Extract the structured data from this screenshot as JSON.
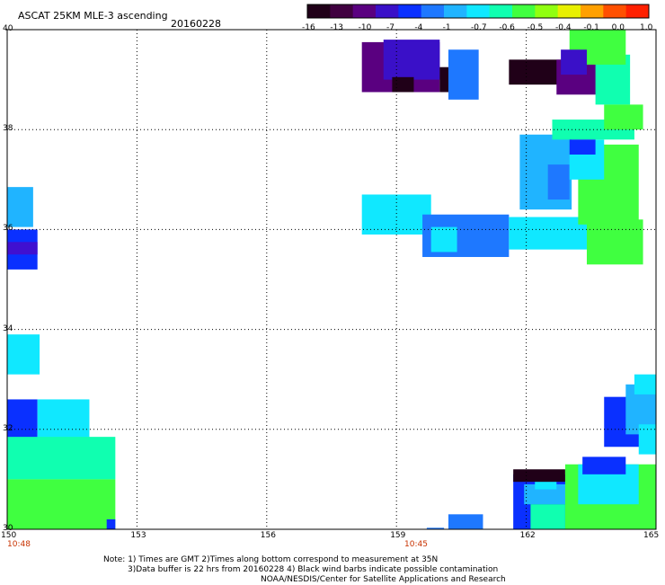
{
  "header": {
    "title": "ASCAT 25KM MLE-3 ascending",
    "date": "20160228"
  },
  "colorbar": {
    "labels": [
      "-16",
      "-13",
      "-10",
      "-7",
      "-4",
      "-1",
      "-0.7",
      "-0.6",
      "-0.5",
      "-0.4",
      "-0.1",
      "0.0",
      "1.0"
    ],
    "colors": [
      "#200018",
      "#400040",
      "#5a0080",
      "#3a10c8",
      "#0a30ff",
      "#1e78ff",
      "#20b4ff",
      "#10e8ff",
      "#10ffb0",
      "#40ff40",
      "#90ff10",
      "#e8f000",
      "#ffa000",
      "#ff5000",
      "#ff2000"
    ]
  },
  "map": {
    "lat_labels": [
      "40",
      "38",
      "36",
      "34",
      "32",
      "30"
    ],
    "lon_labels": [
      "150",
      "153",
      "156",
      "159",
      "162",
      "165"
    ],
    "time_labels": [
      "10:48",
      "10:45"
    ],
    "grid": "dotted",
    "cells": [
      {
        "lon": 150.0,
        "lat": 35.2,
        "w": 0.7,
        "h": 0.8,
        "color": "#0a30ff"
      },
      {
        "lon": 150.0,
        "lat": 35.5,
        "w": 0.7,
        "h": 0.25,
        "color": "#4010d0"
      },
      {
        "lon": 150.0,
        "lat": 36.05,
        "w": 0.6,
        "h": 0.8,
        "color": "#20b4ff"
      },
      {
        "lon": 150.0,
        "lat": 33.1,
        "w": 0.75,
        "h": 0.8,
        "color": "#10e8ff"
      },
      {
        "lon": 150.0,
        "lat": 31.8,
        "w": 0.7,
        "h": 0.8,
        "color": "#0a30ff"
      },
      {
        "lon": 150.7,
        "lat": 31.8,
        "w": 1.2,
        "h": 0.8,
        "color": "#10e8ff"
      },
      {
        "lon": 150.0,
        "lat": 31.0,
        "w": 2.5,
        "h": 0.85,
        "color": "#10ffb0"
      },
      {
        "lon": 150.0,
        "lat": 30.0,
        "w": 2.5,
        "h": 1.0,
        "color": "#40ff40"
      },
      {
        "lon": 152.3,
        "lat": 30.0,
        "w": 0.2,
        "h": 0.2,
        "color": "#0a30ff"
      },
      {
        "lon": 158.2,
        "lat": 38.75,
        "w": 1.8,
        "h": 1.0,
        "color": "#5a0080"
      },
      {
        "lon": 158.7,
        "lat": 39.0,
        "w": 1.3,
        "h": 0.8,
        "color": "#3a10c8"
      },
      {
        "lon": 160.0,
        "lat": 38.75,
        "w": 0.4,
        "h": 0.5,
        "color": "#200018"
      },
      {
        "lon": 158.9,
        "lat": 38.75,
        "w": 0.5,
        "h": 0.3,
        "color": "#200018"
      },
      {
        "lon": 160.2,
        "lat": 38.6,
        "w": 0.7,
        "h": 1.0,
        "color": "#1e78ff"
      },
      {
        "lon": 158.2,
        "lat": 35.9,
        "w": 1.6,
        "h": 0.8,
        "color": "#10e8ff"
      },
      {
        "lon": 159.6,
        "lat": 35.45,
        "w": 2.0,
        "h": 0.85,
        "color": "#1e78ff"
      },
      {
        "lon": 159.8,
        "lat": 35.55,
        "w": 0.6,
        "h": 0.5,
        "color": "#10e8ff"
      },
      {
        "lon": 161.6,
        "lat": 35.6,
        "w": 1.8,
        "h": 0.65,
        "color": "#10e8ff"
      },
      {
        "lon": 163.4,
        "lat": 35.3,
        "w": 1.3,
        "h": 0.9,
        "color": "#40ff40"
      },
      {
        "lon": 161.85,
        "lat": 36.4,
        "w": 1.2,
        "h": 1.5,
        "color": "#20b4ff"
      },
      {
        "lon": 162.5,
        "lat": 36.6,
        "w": 0.5,
        "h": 0.7,
        "color": "#1e78ff"
      },
      {
        "lon": 163.2,
        "lat": 36.1,
        "w": 1.4,
        "h": 1.6,
        "color": "#40ff40"
      },
      {
        "lon": 163.0,
        "lat": 37.0,
        "w": 0.8,
        "h": 0.8,
        "color": "#10e8ff"
      },
      {
        "lon": 162.6,
        "lat": 37.8,
        "w": 1.9,
        "h": 0.4,
        "color": "#10ffb0"
      },
      {
        "lon": 163.0,
        "lat": 37.5,
        "w": 0.6,
        "h": 0.3,
        "color": "#0a30ff"
      },
      {
        "lon": 161.6,
        "lat": 38.9,
        "w": 1.2,
        "h": 0.5,
        "color": "#200018"
      },
      {
        "lon": 162.7,
        "lat": 38.7,
        "w": 1.2,
        "h": 0.7,
        "color": "#5a0080"
      },
      {
        "lon": 163.6,
        "lat": 38.5,
        "w": 0.8,
        "h": 1.0,
        "color": "#10ffb0"
      },
      {
        "lon": 163.8,
        "lat": 38.0,
        "w": 0.9,
        "h": 0.5,
        "color": "#40ff40"
      },
      {
        "lon": 163.0,
        "lat": 39.3,
        "w": 1.3,
        "h": 0.7,
        "color": "#40ff40"
      },
      {
        "lon": 162.8,
        "lat": 39.1,
        "w": 0.6,
        "h": 0.5,
        "color": "#3a10c8"
      },
      {
        "lon": 163.8,
        "lat": 31.65,
        "w": 1.0,
        "h": 1.0,
        "color": "#0a30ff"
      },
      {
        "lon": 164.3,
        "lat": 31.9,
        "w": 0.7,
        "h": 1.0,
        "color": "#20b4ff"
      },
      {
        "lon": 164.6,
        "lat": 31.5,
        "w": 0.4,
        "h": 0.6,
        "color": "#10e8ff"
      },
      {
        "lon": 164.5,
        "lat": 32.7,
        "w": 0.5,
        "h": 0.4,
        "color": "#10e8ff"
      },
      {
        "lon": 161.7,
        "lat": 30.0,
        "w": 1.3,
        "h": 1.1,
        "color": "#0a30ff"
      },
      {
        "lon": 161.95,
        "lat": 30.5,
        "w": 1.1,
        "h": 0.4,
        "color": "#20b4ff"
      },
      {
        "lon": 162.2,
        "lat": 30.8,
        "w": 0.5,
        "h": 0.35,
        "color": "#10e8ff"
      },
      {
        "lon": 161.7,
        "lat": 30.95,
        "w": 1.2,
        "h": 0.25,
        "color": "#200018"
      },
      {
        "lon": 162.1,
        "lat": 30.0,
        "w": 0.8,
        "h": 0.5,
        "color": "#10ffb0"
      },
      {
        "lon": 162.9,
        "lat": 30.0,
        "w": 2.1,
        "h": 1.3,
        "color": "#40ff40"
      },
      {
        "lon": 163.2,
        "lat": 30.5,
        "w": 1.4,
        "h": 0.8,
        "color": "#10e8ff"
      },
      {
        "lon": 163.3,
        "lat": 31.1,
        "w": 1.0,
        "h": 0.35,
        "color": "#0a30ff"
      },
      {
        "lon": 160.2,
        "lat": 30.0,
        "w": 0.8,
        "h": 0.3,
        "color": "#1e78ff"
      },
      {
        "lon": 159.7,
        "lat": 30.0,
        "w": 0.4,
        "h": 0.03,
        "color": "#1e78ff"
      }
    ]
  },
  "notes": {
    "line1": "Note: 1) Times are GMT 2)Times along bottom correspond to measurement at 35N",
    "line2": "3)Data buffer is 22 hrs from 20160228 4) Black wind barbs indicate possible contamination",
    "line3": "NOAA/NESDIS/Center for Satellite Applications and Research"
  }
}
